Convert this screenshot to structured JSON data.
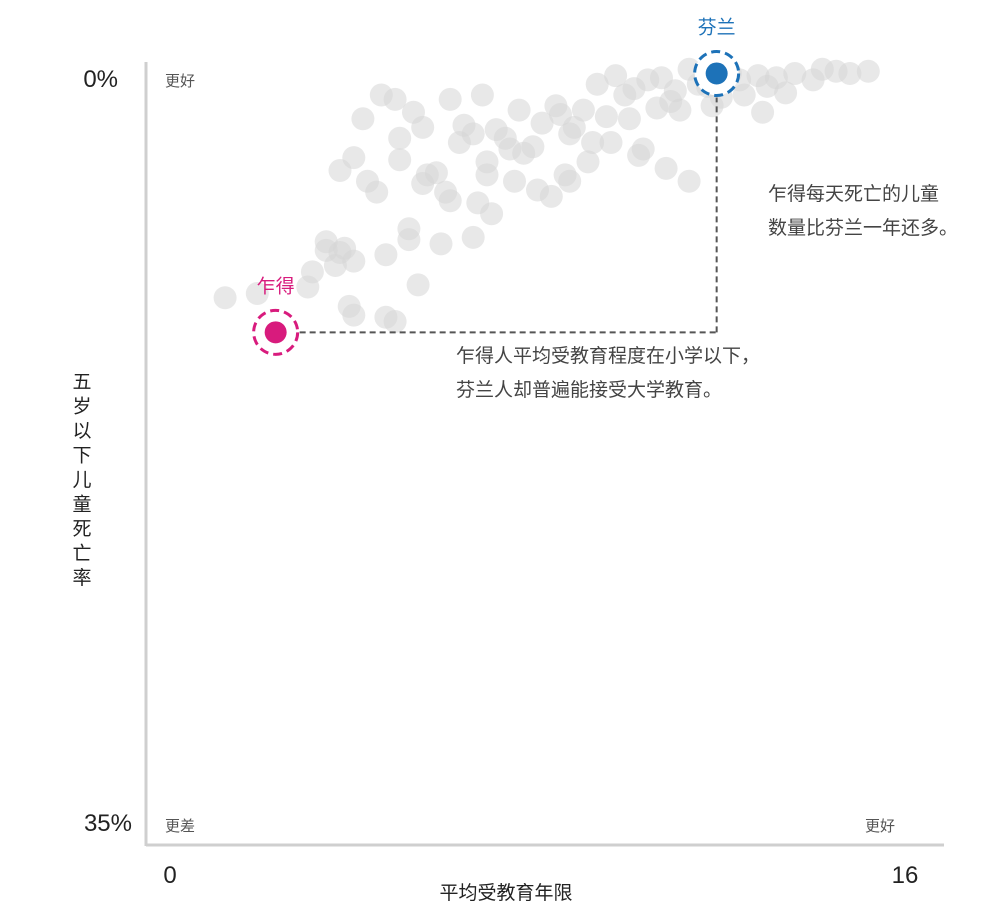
{
  "chart_data": {
    "type": "scatter",
    "xlabel": "平均受教育年限",
    "ylabel": "五岁以下儿童死亡率",
    "xlim": [
      0,
      16
    ],
    "ylim": [
      0,
      35
    ],
    "x_ticks": [
      "0",
      "16"
    ],
    "y_ticks": [
      "0%",
      "35%"
    ],
    "y_inverted": true,
    "grid": false,
    "corner_labels": {
      "top_left": "更好",
      "bottom_left": "更差",
      "bottom_right": "更好"
    },
    "colors": {
      "background_points": "#d6d6d6",
      "chad": "#d81b7d",
      "finland": "#1d72b8",
      "axis": "#cfcfcf",
      "connector": "#555555"
    },
    "highlights": [
      {
        "name": "乍得",
        "x": 2.3,
        "y": 12.3,
        "color": "#d81b7d"
      },
      {
        "name": "芬兰",
        "x": 11.9,
        "y": 0.3,
        "color": "#1d72b8"
      }
    ],
    "annotations": [
      {
        "lines": [
          "乍得每天死亡的儿童",
          "数量比芬兰一年还多。"
        ]
      },
      {
        "lines": [
          "乍得人平均受教育程度在小学以下，",
          "芬兰人却普遍能接受大学教育。"
        ]
      }
    ],
    "points": [
      [
        1.2,
        10.7
      ],
      [
        1.9,
        10.5
      ],
      [
        4.0,
        11.5
      ],
      [
        3.0,
        10.2
      ],
      [
        3.1,
        9.5
      ],
      [
        3.9,
        11.1
      ],
      [
        4.7,
        11.6
      ],
      [
        4.9,
        11.8
      ],
      [
        3.6,
        9.2
      ],
      [
        3.4,
        8.1
      ],
      [
        3.8,
        8.4
      ],
      [
        4.0,
        9.0
      ],
      [
        3.4,
        8.5
      ],
      [
        3.7,
        8.6
      ],
      [
        5.4,
        10.1
      ],
      [
        4.7,
        8.7
      ],
      [
        5.2,
        7.5
      ],
      [
        5.2,
        8.0
      ],
      [
        5.9,
        8.2
      ],
      [
        6.6,
        7.9
      ],
      [
        4.0,
        4.2
      ],
      [
        3.7,
        4.8
      ],
      [
        4.3,
        5.3
      ],
      [
        5.0,
        4.3
      ],
      [
        4.5,
        5.8
      ],
      [
        5.5,
        5.4
      ],
      [
        6.1,
        6.2
      ],
      [
        6.7,
        6.3
      ],
      [
        7.0,
        6.8
      ],
      [
        7.5,
        5.3
      ],
      [
        8.0,
        5.7
      ],
      [
        8.6,
        5.0
      ],
      [
        8.3,
        6.0
      ],
      [
        8.7,
        5.3
      ],
      [
        9.1,
        4.4
      ],
      [
        9.6,
        3.5
      ],
      [
        10.3,
        3.8
      ],
      [
        10.8,
        4.7
      ],
      [
        11.3,
        5.3
      ],
      [
        10.2,
        4.1
      ],
      [
        4.2,
        2.4
      ],
      [
        4.6,
        1.3
      ],
      [
        5.0,
        3.3
      ],
      [
        5.5,
        2.8
      ],
      [
        6.1,
        1.5
      ],
      [
        6.8,
        1.3
      ],
      [
        7.6,
        2.0
      ],
      [
        8.4,
        1.8
      ],
      [
        9.3,
        0.8
      ],
      [
        9.9,
        1.3
      ],
      [
        10.4,
        0.6
      ],
      [
        10.9,
        1.6
      ],
      [
        11.3,
        0.1
      ],
      [
        11.7,
        0.9
      ],
      [
        12.2,
        0.3
      ],
      [
        12.8,
        0.4
      ],
      [
        13.2,
        0.5
      ],
      [
        13.6,
        0.3
      ],
      [
        14.2,
        0.1
      ],
      [
        14.5,
        0.2
      ],
      [
        15.2,
        0.2
      ],
      [
        12.5,
        1.3
      ],
      [
        11.1,
        2.0
      ],
      [
        9.2,
        3.5
      ],
      [
        7.4,
        3.8
      ],
      [
        6.9,
        4.4
      ],
      [
        6.3,
        3.5
      ],
      [
        5.8,
        4.9
      ],
      [
        4.9,
        1.5
      ],
      [
        5.3,
        2.1
      ],
      [
        6.4,
        2.7
      ],
      [
        7.1,
        2.9
      ],
      [
        7.9,
        3.7
      ],
      [
        8.8,
        2.8
      ],
      [
        10.0,
        2.4
      ],
      [
        10.6,
        1.9
      ],
      [
        11.8,
        1.8
      ],
      [
        12.9,
        2.1
      ],
      [
        13.4,
        1.2
      ],
      [
        14.8,
        0.3
      ],
      [
        9.5,
        2.3
      ],
      [
        8.1,
        2.6
      ],
      [
        8.5,
        2.2
      ],
      [
        7.3,
        3.3
      ],
      [
        6.6,
        3.1
      ],
      [
        7.7,
        4.0
      ],
      [
        8.7,
        3.1
      ],
      [
        9.0,
        2.0
      ],
      [
        10.1,
        1.0
      ],
      [
        10.7,
        0.5
      ],
      [
        11.5,
        0.8
      ],
      [
        12.4,
        0.6
      ],
      [
        13.0,
        0.9
      ],
      [
        14.0,
        0.6
      ],
      [
        12.0,
        1.4
      ],
      [
        11.0,
        1.1
      ],
      [
        9.7,
        0.4
      ],
      [
        6.0,
        5.8
      ],
      [
        5.6,
        5.0
      ],
      [
        6.9,
        5.0
      ]
    ]
  }
}
